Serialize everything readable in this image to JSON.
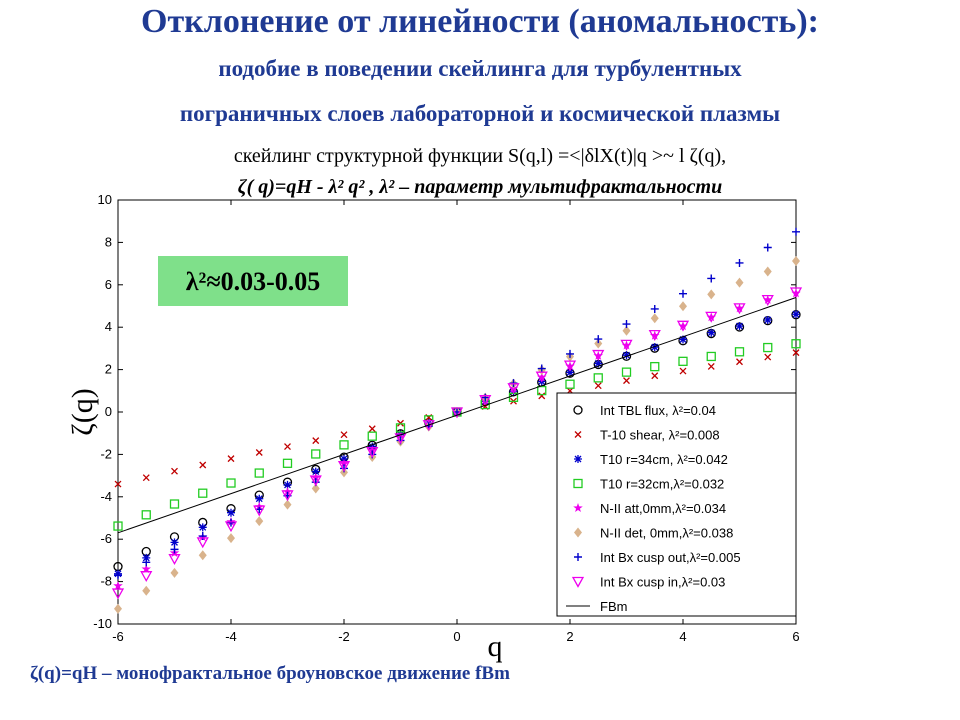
{
  "chart_data": {
    "type": "scatter",
    "title": "Отклонение от линейности (аномальность):",
    "subtitle": [
      "подобие в поведении скейлинга для турбулентных",
      "пограничных слоев лабораторной и космической плазмы"
    ],
    "formula": [
      "скейлинг структурной функции S(q,l) =<|δlX(t)|q >~ l ζ(q),",
      "ζ( q)=qH - λ² q² , λ² – параметр мультифрактальности"
    ],
    "annotation": "λ²≈0.03-0.05",
    "footnote": "ζ(q)=qH – монофрактальное броуновское движение fBm",
    "xlabel": "q",
    "ylabel": "ζ(q)",
    "xlim": [
      -6,
      6
    ],
    "ylim": [
      -10,
      10
    ],
    "xticks": [
      -6,
      -4,
      -2,
      0,
      2,
      4,
      6
    ],
    "yticks": [
      -10,
      -8,
      -6,
      -4,
      -2,
      0,
      2,
      4,
      6,
      8,
      10
    ],
    "legend": "lower right",
    "x": [
      -6,
      -5.5,
      -5,
      -4.5,
      -4,
      -3.5,
      -3,
      -2.5,
      -2,
      -1.5,
      -1,
      -0.5,
      0,
      0.5,
      1,
      1.5,
      2,
      2.5,
      3,
      3.5,
      4,
      4.5,
      5,
      5.5,
      6
    ],
    "series": [
      {
        "name": "Int TBL flux, λ²=0.04",
        "color": "#000000",
        "marker": "o",
        "values": [
          -7.29,
          -6.58,
          -5.89,
          -5.21,
          -4.56,
          -3.92,
          -3.31,
          -2.71,
          -2.13,
          -1.57,
          -1.03,
          -0.5,
          0,
          0.49,
          0.95,
          1.4,
          1.83,
          2.24,
          2.63,
          3.01,
          3.36,
          3.7,
          4.01,
          4.31,
          4.59
        ]
      },
      {
        "name": "T-10 shear, λ²=0.008",
        "color": "#c00000",
        "marker": "x",
        "values": [
          -3.4,
          -3.1,
          -2.79,
          -2.5,
          -2.2,
          -1.91,
          -1.63,
          -1.35,
          -1.07,
          -0.79,
          -0.53,
          -0.26,
          0,
          0.26,
          0.51,
          0.76,
          1.0,
          1.24,
          1.48,
          1.71,
          1.93,
          2.15,
          2.37,
          2.59,
          2.8
        ]
      },
      {
        "name": "T10 r=34cm, λ²=0.042",
        "color": "#0000cc",
        "marker": "*",
        "values": [
          -7.63,
          -6.88,
          -6.15,
          -5.44,
          -4.75,
          -4.09,
          -3.44,
          -2.81,
          -2.21,
          -1.63,
          -1.06,
          -0.52,
          0,
          0.5,
          0.98,
          1.44,
          1.87,
          2.29,
          2.68,
          3.06,
          3.42,
          3.74,
          4.05,
          4.34,
          4.61
        ]
      },
      {
        "name": "T10 r=32cm,λ²=0.032",
        "color": "#22cc22",
        "marker": "s",
        "values": [
          -5.38,
          -4.85,
          -4.34,
          -3.83,
          -3.35,
          -2.88,
          -2.42,
          -1.98,
          -1.55,
          -1.14,
          -0.75,
          -0.37,
          0,
          0.35,
          0.69,
          1.01,
          1.31,
          1.61,
          1.88,
          2.14,
          2.39,
          2.62,
          2.84,
          3.04,
          3.22
        ]
      },
      {
        "name": "N-II att,0mm,λ²=0.034",
        "color": "#ee00ee",
        "marker": "p",
        "values": [
          -8.2,
          -7.41,
          -6.65,
          -5.9,
          -5.18,
          -4.47,
          -3.77,
          -3.1,
          -2.44,
          -1.81,
          -1.19,
          -0.58,
          0,
          0.57,
          1.11,
          1.64,
          2.16,
          2.65,
          3.14,
          3.6,
          4.05,
          4.47,
          4.89,
          5.29,
          5.6
        ]
      },
      {
        "name": "N-II det, 0mm,λ²=0.038",
        "color": "#d9b38c",
        "marker": "d",
        "values": [
          -9.28,
          -8.43,
          -7.59,
          -6.76,
          -5.95,
          -5.15,
          -4.37,
          -3.61,
          -2.85,
          -2.12,
          -1.4,
          -0.69,
          0,
          0.68,
          1.34,
          1.98,
          2.61,
          3.23,
          3.83,
          4.42,
          4.99,
          5.55,
          6.1,
          6.63,
          7.12
        ]
      },
      {
        "name": "Int Bx cusp out,λ²=0.005",
        "color": "#0000cc",
        "marker": "+",
        "values": [
          -7.7,
          -7.09,
          -6.48,
          -5.85,
          -5.22,
          -4.59,
          -3.95,
          -3.31,
          -2.66,
          -2.0,
          -1.34,
          -0.67,
          0,
          0.68,
          1.36,
          2.05,
          2.74,
          3.44,
          4.15,
          4.86,
          5.58,
          6.3,
          7.03,
          7.76,
          8.5
        ]
      },
      {
        "name": "Int Bx cusp in,λ²=0.03",
        "color": "#ee00ee",
        "marker": "v",
        "values": [
          -8.54,
          -7.72,
          -6.92,
          -6.13,
          -5.37,
          -4.63,
          -3.91,
          -3.21,
          -2.53,
          -1.87,
          -1.22,
          -0.6,
          0,
          0.58,
          1.14,
          1.69,
          2.21,
          2.71,
          3.19,
          3.65,
          4.09,
          4.51,
          4.91,
          5.3,
          5.66
        ]
      },
      {
        "name": "FBm",
        "color": "#000000",
        "marker": "line",
        "x": [
          -6,
          6
        ],
        "values": [
          -5.7,
          5.4
        ]
      }
    ]
  }
}
